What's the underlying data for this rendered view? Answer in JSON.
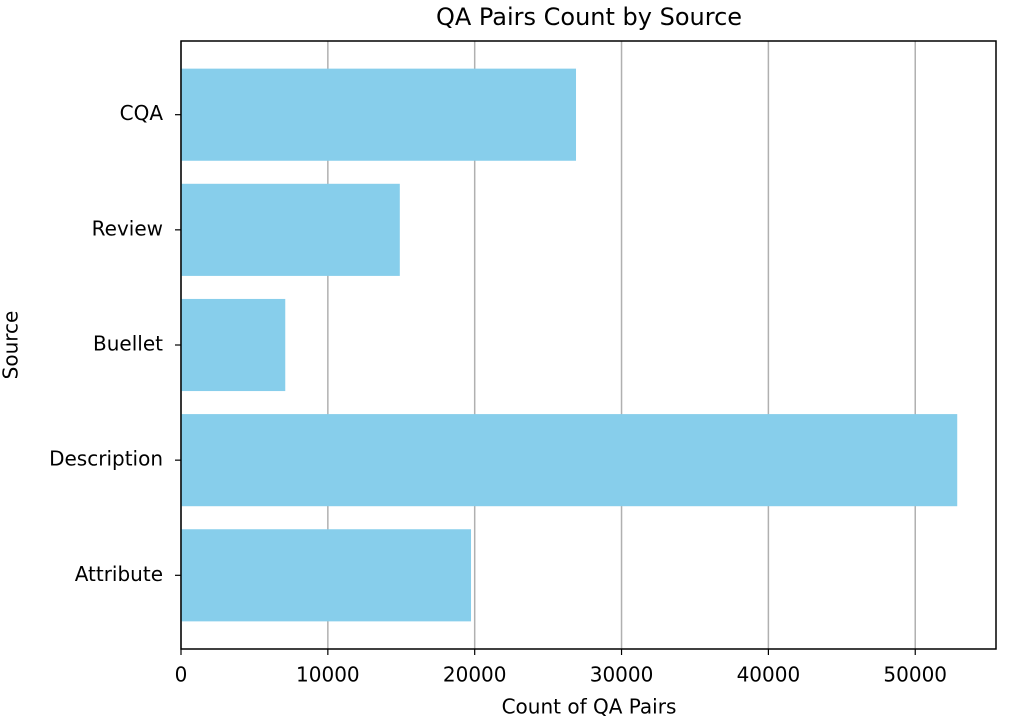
{
  "chart_data": {
    "type": "barh",
    "title": "QA Pairs Count by Source",
    "x_label": "Count of QA Pairs",
    "y_label": "Source",
    "categories": [
      "Attribute",
      "Description",
      "Buellet",
      "Review",
      "CQA"
    ],
    "values": [
      19750,
      52860,
      7100,
      14900,
      26900
    ],
    "color": "#87ceeb",
    "xlim": [
      0,
      55500
    ],
    "xticks": [
      0,
      10000,
      20000,
      30000,
      40000,
      50000
    ],
    "grid": true
  }
}
